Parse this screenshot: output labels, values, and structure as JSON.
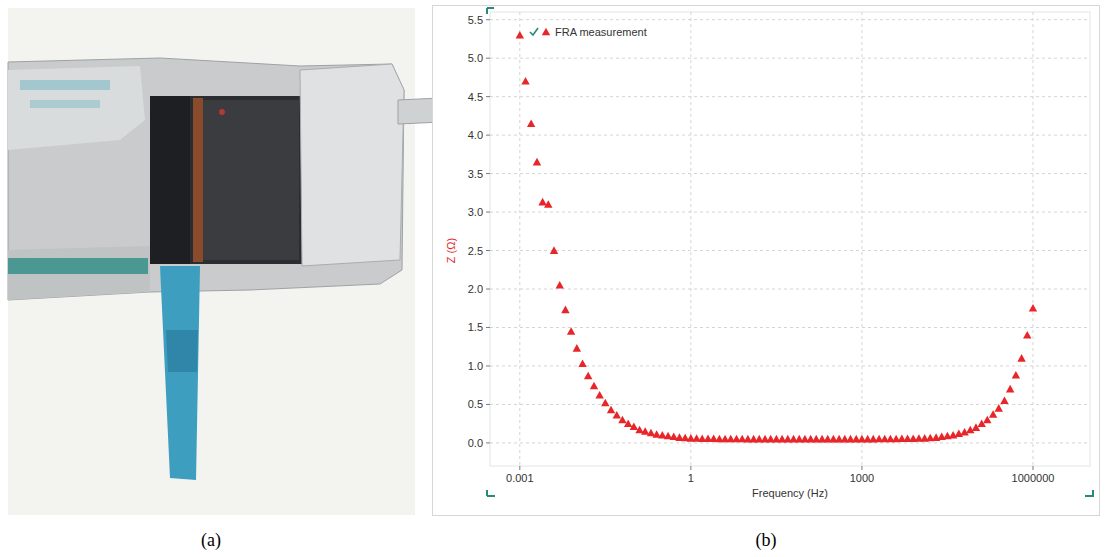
{
  "figure": {
    "panel_labels": [
      "(a)",
      "(b)"
    ]
  },
  "chart_data": {
    "type": "scatter",
    "x_label": "Frequency (Hz)",
    "y_label": "Z (Ω)",
    "log": "x",
    "grid": true,
    "legend": "upper left",
    "xlim": [
      0.0003,
      10000000
    ],
    "xticks": [
      0.001,
      1,
      1000,
      1000000
    ],
    "ylim": [
      -0.3,
      5.6
    ],
    "yticks": [
      {
        "value": 0,
        "label": "0.0"
      },
      0.5,
      {
        "value": 1,
        "label": "1.0"
      },
      1.5,
      {
        "value": 2,
        "label": "2.0"
      },
      2.5,
      {
        "value": 3,
        "label": "3.0"
      },
      3.5,
      {
        "value": 4,
        "label": "4.0"
      },
      4.5,
      {
        "value": 5,
        "label": "5.0"
      },
      5.5
    ],
    "series": [
      {
        "name": "FRA measurement",
        "color": "#e8262a",
        "marker": "triangle",
        "x": [
          0.001,
          0.00126,
          0.00158,
          0.002,
          0.00251,
          0.00316,
          0.00398,
          0.00501,
          0.00631,
          0.00794,
          0.01,
          0.0126,
          0.0158,
          0.02,
          0.0251,
          0.0316,
          0.0398,
          0.0501,
          0.0631,
          0.0794,
          0.1,
          0.126,
          0.158,
          0.2,
          0.251,
          0.316,
          0.398,
          0.501,
          0.631,
          0.794,
          1,
          1.26,
          1.58,
          2,
          2.51,
          3.16,
          3.98,
          5.01,
          6.31,
          7.94,
          10,
          12.6,
          15.8,
          20,
          25.1,
          31.6,
          39.8,
          50.1,
          63.1,
          79.4,
          100,
          126,
          158,
          200,
          251,
          316,
          398,
          501,
          631,
          794,
          1000,
          1260,
          1580,
          2000,
          2510,
          3160,
          3980,
          5010,
          6310,
          7940,
          10000,
          12600,
          15800,
          20000,
          25100,
          31600,
          39800,
          50100,
          63100,
          79400,
          100000,
          126000,
          158000,
          200000,
          251000,
          316000,
          398000,
          501000,
          631000,
          794000,
          1000000
        ],
        "values": [
          5.3,
          4.7,
          4.15,
          3.65,
          3.13,
          3.1,
          2.5,
          2.05,
          1.73,
          1.45,
          1.23,
          1.03,
          0.87,
          0.74,
          0.62,
          0.52,
          0.43,
          0.36,
          0.3,
          0.25,
          0.21,
          0.17,
          0.15,
          0.13,
          0.11,
          0.1,
          0.09,
          0.08,
          0.07,
          0.065,
          0.06,
          0.058,
          0.056,
          0.055,
          0.054,
          0.053,
          0.052,
          0.052,
          0.051,
          0.051,
          0.05,
          0.05,
          0.05,
          0.05,
          0.05,
          0.05,
          0.05,
          0.05,
          0.05,
          0.05,
          0.05,
          0.05,
          0.05,
          0.05,
          0.05,
          0.05,
          0.05,
          0.05,
          0.05,
          0.05,
          0.05,
          0.05,
          0.05,
          0.051,
          0.051,
          0.052,
          0.053,
          0.054,
          0.055,
          0.056,
          0.058,
          0.06,
          0.065,
          0.07,
          0.08,
          0.09,
          0.1,
          0.12,
          0.14,
          0.17,
          0.2,
          0.25,
          0.3,
          0.37,
          0.45,
          0.55,
          0.7,
          0.88,
          1.1,
          1.4,
          1.75
        ]
      }
    ]
  }
}
